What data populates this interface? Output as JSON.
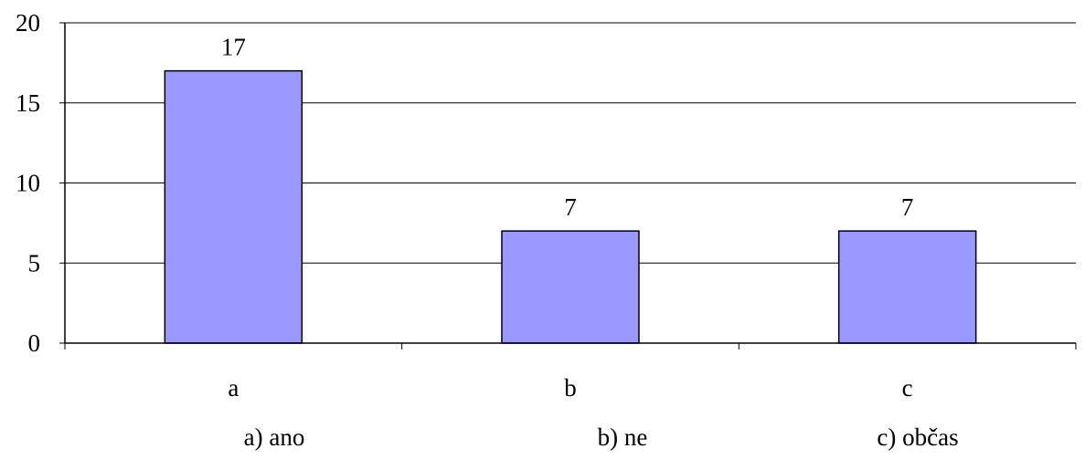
{
  "chart_data": {
    "type": "bar",
    "categories": [
      "a",
      "b",
      "c"
    ],
    "values": [
      17,
      7,
      7
    ],
    "data_labels": [
      "17",
      "7",
      "7"
    ],
    "ylim": [
      0,
      20
    ],
    "yticks": [
      "0",
      "5",
      "10",
      "15",
      "20"
    ],
    "ytick_values": [
      0,
      5,
      10,
      15,
      20
    ],
    "grid": true,
    "legend": "none",
    "title": "",
    "xlabel": "",
    "ylabel": "",
    "bar_color": "#9999ff",
    "bar_border_color": "#000000"
  },
  "footer": {
    "labels": [
      "a) ano",
      "b) ne",
      "c) občas"
    ]
  }
}
